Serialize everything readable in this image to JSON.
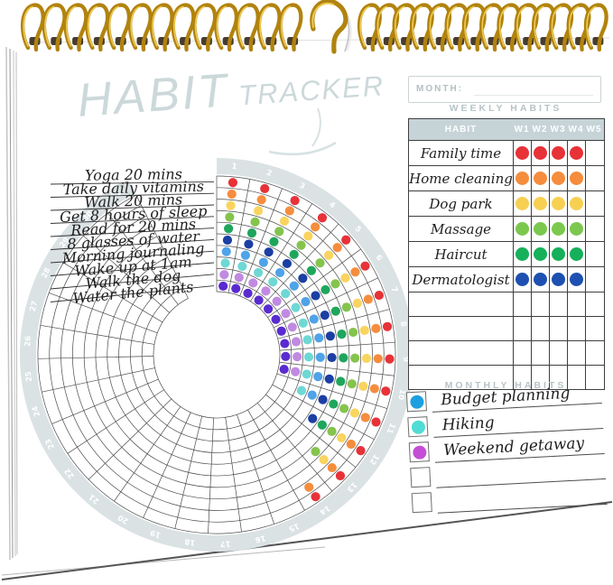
{
  "page": {
    "title_line1": "HABIT",
    "title_line2": "TRACKER"
  },
  "month_field": {
    "label": "MONTH:",
    "value": ""
  },
  "weekly": {
    "section_title": "WEEKLY HABITS",
    "table": {
      "habit_header": "HABIT",
      "week_headers": [
        "W1",
        "W2",
        "W3",
        "W4",
        "W5"
      ],
      "rows": [
        {
          "name": "Family time",
          "color": "#e73238",
          "weeks": [
            true,
            true,
            true,
            true,
            false
          ]
        },
        {
          "name": "Home cleaning",
          "color": "#f58d3d",
          "weeks": [
            true,
            true,
            true,
            true,
            false
          ]
        },
        {
          "name": "Dog park",
          "color": "#f7d052",
          "weeks": [
            true,
            true,
            true,
            true,
            false
          ]
        },
        {
          "name": "Massage",
          "color": "#7cc84f",
          "weeks": [
            true,
            true,
            true,
            true,
            false
          ]
        },
        {
          "name": "Haircut",
          "color": "#17b05a",
          "weeks": [
            true,
            true,
            true,
            true,
            false
          ]
        },
        {
          "name": "Dermatologist",
          "color": "#1d50b0",
          "weeks": [
            true,
            true,
            true,
            true,
            false
          ]
        }
      ],
      "empty_rows": 4
    }
  },
  "monthly": {
    "section_title": "MONTHLY HABITS",
    "items": [
      {
        "label": "Budget planning",
        "color": "#1e9fe0",
        "checked": true
      },
      {
        "label": "Hiking",
        "color": "#4fdcd4",
        "checked": true
      },
      {
        "label": "Weekend getaway",
        "color": "#c44fd4",
        "checked": true
      },
      {
        "label": "",
        "color": "",
        "checked": false
      },
      {
        "label": "",
        "color": "",
        "checked": false
      }
    ]
  },
  "chart_data": {
    "type": "radial-habit-grid",
    "title": "HABIT TRACKER daily wheel",
    "days_in_month": 31,
    "day_labels_shown": "1-31 around outer band",
    "rings_outer_to_inner": true,
    "habits": [
      {
        "name": "Yoga 20 mins",
        "color": "#e73238",
        "days_completed": 14
      },
      {
        "name": "Take daily vitamins",
        "color": "#f58d3d",
        "days_completed": 14
      },
      {
        "name": "Walk 20 mins",
        "color": "#f9d45f",
        "days_completed": 13
      },
      {
        "name": "Get 8 hours of sleep",
        "color": "#84c44d",
        "days_completed": 13
      },
      {
        "name": "Read for 20 mins",
        "color": "#1fa65c",
        "days_completed": 12
      },
      {
        "name": "8 glasses of water",
        "color": "#1b3fa3",
        "days_completed": 12
      },
      {
        "name": "Morning journaling",
        "color": "#4fa3e8",
        "days_completed": 11
      },
      {
        "name": "Wake up at 1am",
        "color": "#6ed8d4",
        "days_completed": 11
      },
      {
        "name": "Walk the dog",
        "color": "#c18ae2",
        "days_completed": 10
      },
      {
        "name": "Water the plants",
        "color": "#5a2bd0",
        "days_completed": 10
      }
    ]
  },
  "colors": {
    "title": "#ccd8da",
    "day_band": "#dae2e4",
    "day_number": "#ffffff",
    "grid_line": "#4a4a4a",
    "table_header_bg": "#c6d4d8",
    "table_header_text": "#ffffff",
    "section_title": "#b7c4c7",
    "handwriting": "#1e1e1e",
    "binding_gold": "#b1830e",
    "binding_highlight": "#eecb56"
  }
}
